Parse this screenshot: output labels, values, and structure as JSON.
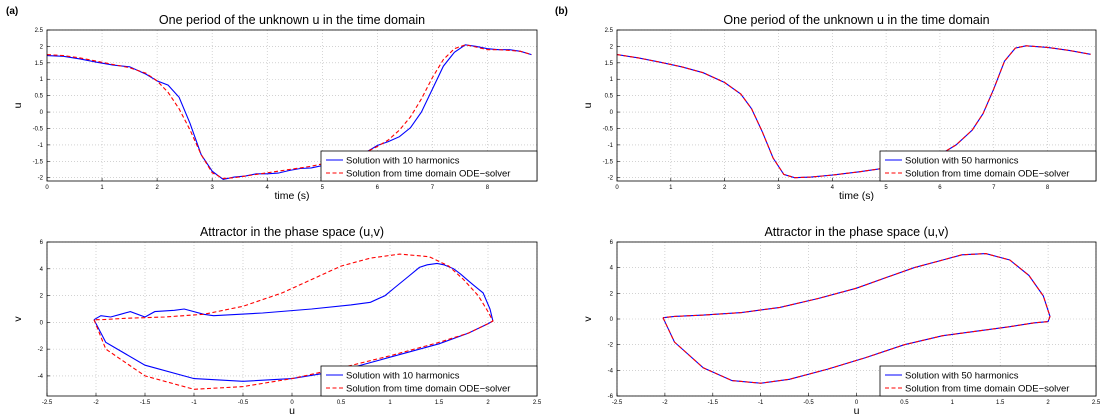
{
  "panels": {
    "a": "(a)",
    "b": "(b)"
  },
  "chart_data": [
    {
      "id": "a_top",
      "type": "line",
      "title": "One period of the unknown u in the time domain",
      "xlabel": "time (s)",
      "ylabel": "u",
      "xlim": [
        0,
        8.9
      ],
      "ylim": [
        -2.1,
        2.5
      ],
      "xticks": [
        0,
        1,
        2,
        3,
        4,
        5,
        6,
        7,
        8
      ],
      "yticks": [
        -2,
        -1.5,
        -1,
        -0.5,
        0,
        0.5,
        1,
        1.5,
        2,
        2.5
      ],
      "grid": true,
      "legend_position": "bottom-right",
      "series": [
        {
          "name": "Solution with 10 harmonics",
          "color": "#0000ff",
          "dash": "solid",
          "x": [
            0,
            0.3,
            0.6,
            0.9,
            1.2,
            1.5,
            1.8,
            2.0,
            2.2,
            2.4,
            2.6,
            2.8,
            3.0,
            3.2,
            3.4,
            3.6,
            3.8,
            4.0,
            4.2,
            4.4,
            4.6,
            4.8,
            5.0,
            5.2,
            5.4,
            5.6,
            5.8,
            6.0,
            6.2,
            6.4,
            6.6,
            6.8,
            7.0,
            7.2,
            7.4,
            7.6,
            7.8,
            8.0,
            8.2,
            8.4,
            8.6,
            8.8
          ],
          "y": [
            1.72,
            1.7,
            1.62,
            1.52,
            1.43,
            1.38,
            1.15,
            0.95,
            0.82,
            0.45,
            -0.35,
            -1.3,
            -1.8,
            -2.05,
            -1.98,
            -1.95,
            -1.88,
            -1.88,
            -1.86,
            -1.78,
            -1.72,
            -1.7,
            -1.63,
            -1.58,
            -1.5,
            -1.38,
            -1.22,
            -1.02,
            -0.9,
            -0.75,
            -0.48,
            0.0,
            0.7,
            1.4,
            1.82,
            2.05,
            2.0,
            1.93,
            1.9,
            1.9,
            1.85,
            1.75
          ]
        },
        {
          "name": "Solution from time domain ODE−solver",
          "color": "#ff0000",
          "dash": "dashed",
          "x": [
            0,
            0.3,
            0.6,
            0.9,
            1.2,
            1.5,
            1.8,
            2.0,
            2.2,
            2.4,
            2.6,
            2.8,
            3.0,
            3.2,
            3.4,
            3.6,
            3.8,
            4.0,
            4.2,
            4.4,
            4.6,
            4.8,
            5.0,
            5.2,
            5.4,
            5.6,
            5.8,
            6.0,
            6.2,
            6.4,
            6.6,
            6.8,
            7.0,
            7.2,
            7.4,
            7.6,
            7.8,
            8.0,
            8.2,
            8.4,
            8.6,
            8.8
          ],
          "y": [
            1.75,
            1.72,
            1.65,
            1.55,
            1.45,
            1.35,
            1.18,
            0.95,
            0.6,
            0.1,
            -0.55,
            -1.3,
            -1.85,
            -2.02,
            -2.0,
            -1.95,
            -1.9,
            -1.85,
            -1.8,
            -1.75,
            -1.7,
            -1.65,
            -1.58,
            -1.52,
            -1.45,
            -1.35,
            -1.22,
            -1.05,
            -0.85,
            -0.55,
            -0.15,
            0.4,
            1.05,
            1.6,
            1.93,
            2.05,
            1.98,
            1.9,
            1.9,
            1.88,
            1.85,
            1.75
          ]
        }
      ]
    },
    {
      "id": "a_bottom",
      "type": "line",
      "title": "Attractor in the phase space (u,v)",
      "xlabel": "u",
      "ylabel": "v",
      "xlim": [
        -2.5,
        2.5
      ],
      "ylim": [
        -5.5,
        6
      ],
      "xticks": [
        -2.5,
        -2,
        -1.5,
        -1,
        -0.5,
        0,
        0.5,
        1,
        1.5,
        2,
        2.5
      ],
      "yticks": [
        -4,
        -2,
        0,
        2,
        4,
        6
      ],
      "grid": true,
      "legend_position": "bottom-right",
      "series": [
        {
          "name": "Solution with 10 harmonics",
          "color": "#0000ff",
          "dash": "solid",
          "x": [
            -2.02,
            -1.9,
            -1.5,
            -1.0,
            -0.5,
            0.0,
            0.5,
            1.0,
            1.5,
            1.8,
            2.0,
            2.05,
            2.02,
            1.95,
            1.9,
            1.85,
            1.8,
            1.72,
            1.65,
            1.55,
            1.48,
            1.38,
            1.3,
            1.2,
            1.05,
            0.95,
            0.8,
            0.6,
            0.2,
            -0.3,
            -0.8,
            -0.9,
            -1.1,
            -1.2,
            -1.4,
            -1.5,
            -1.65,
            -1.75,
            -1.85,
            -1.95,
            -2.02
          ],
          "y": [
            0.2,
            -1.5,
            -3.2,
            -4.2,
            -4.4,
            -4.2,
            -3.6,
            -2.6,
            -1.6,
            -0.8,
            -0.1,
            0.1,
            1.0,
            2.2,
            2.5,
            2.8,
            3.1,
            3.6,
            4.0,
            4.3,
            4.4,
            4.3,
            4.1,
            3.5,
            2.6,
            2.0,
            1.5,
            1.3,
            1.0,
            0.7,
            0.5,
            0.6,
            1.0,
            0.9,
            0.8,
            0.4,
            0.8,
            0.6,
            0.4,
            0.5,
            0.2
          ]
        },
        {
          "name": "Solution from time domain ODE−solver",
          "color": "#ff0000",
          "dash": "dashed",
          "x": [
            -2.02,
            -1.9,
            -1.5,
            -1.0,
            -0.5,
            0.0,
            0.5,
            1.0,
            1.5,
            1.8,
            2.0,
            2.05,
            2.0,
            1.9,
            1.75,
            1.6,
            1.4,
            1.1,
            0.8,
            0.5,
            0.2,
            -0.1,
            -0.5,
            -0.9,
            -1.3,
            -1.7,
            -1.95,
            -2.02
          ],
          "y": [
            0.2,
            -2.0,
            -4.0,
            -5.0,
            -4.8,
            -4.2,
            -3.4,
            -2.5,
            -1.5,
            -0.8,
            -0.1,
            0.1,
            0.8,
            2.0,
            3.2,
            4.2,
            4.9,
            5.1,
            4.8,
            4.2,
            3.2,
            2.2,
            1.2,
            0.6,
            0.4,
            0.3,
            0.2,
            0.2
          ]
        }
      ]
    },
    {
      "id": "b_top",
      "type": "line",
      "title": "One period of the unknown u in the time domain",
      "xlabel": "time (s)",
      "ylabel": "u",
      "xlim": [
        0,
        8.9
      ],
      "ylim": [
        -2.1,
        2.5
      ],
      "xticks": [
        0,
        1,
        2,
        3,
        4,
        5,
        6,
        7,
        8
      ],
      "yticks": [
        -2.5,
        -2,
        -1.5,
        -1,
        -0.5,
        0,
        0.5,
        1,
        1.5,
        2,
        2.5
      ],
      "grid": true,
      "legend_position": "bottom-right",
      "series": [
        {
          "name": "Solution with 50 harmonics",
          "color": "#0000ff",
          "dash": "solid",
          "x": [
            0,
            0.4,
            0.8,
            1.2,
            1.6,
            2.0,
            2.3,
            2.5,
            2.7,
            2.9,
            3.1,
            3.3,
            3.6,
            4.0,
            4.5,
            5.0,
            5.5,
            6.0,
            6.3,
            6.6,
            6.8,
            7.0,
            7.2,
            7.4,
            7.6,
            8.0,
            8.4,
            8.8
          ],
          "y": [
            1.75,
            1.65,
            1.52,
            1.38,
            1.2,
            0.9,
            0.55,
            0.1,
            -0.6,
            -1.4,
            -1.9,
            -2.0,
            -1.98,
            -1.92,
            -1.82,
            -1.7,
            -1.55,
            -1.3,
            -1.0,
            -0.55,
            -0.05,
            0.7,
            1.55,
            1.95,
            2.02,
            1.97,
            1.88,
            1.76
          ]
        },
        {
          "name": "Solution from time domain ODE−solver",
          "color": "#ff0000",
          "dash": "dashed",
          "x": [
            0,
            0.4,
            0.8,
            1.2,
            1.6,
            2.0,
            2.3,
            2.5,
            2.7,
            2.9,
            3.1,
            3.3,
            3.6,
            4.0,
            4.5,
            5.0,
            5.5,
            6.0,
            6.3,
            6.6,
            6.8,
            7.0,
            7.2,
            7.4,
            7.6,
            8.0,
            8.4,
            8.8
          ],
          "y": [
            1.75,
            1.65,
            1.52,
            1.38,
            1.2,
            0.9,
            0.55,
            0.1,
            -0.6,
            -1.4,
            -1.9,
            -2.0,
            -1.98,
            -1.92,
            -1.82,
            -1.7,
            -1.55,
            -1.3,
            -1.0,
            -0.55,
            -0.05,
            0.7,
            1.55,
            1.95,
            2.02,
            1.97,
            1.88,
            1.76
          ]
        }
      ]
    },
    {
      "id": "b_bottom",
      "type": "line",
      "title": "Attractor in the phase space (u,v)",
      "xlabel": "u",
      "ylabel": "v",
      "xlim": [
        -2.5,
        2.5
      ],
      "ylim": [
        -6,
        6
      ],
      "xticks": [
        -2.5,
        -2,
        -1.5,
        -1,
        -0.5,
        0,
        0.5,
        1,
        1.5,
        2,
        2.5
      ],
      "yticks": [
        -6,
        -4,
        -2,
        0,
        2,
        4,
        6
      ],
      "grid": true,
      "legend_position": "bottom-right",
      "series": [
        {
          "name": "Solution with 50 harmonics",
          "color": "#0000ff",
          "dash": "solid",
          "x": [
            -2.02,
            -1.9,
            -1.6,
            -1.3,
            -1.0,
            -0.7,
            -0.3,
            0.1,
            0.5,
            0.9,
            1.3,
            1.6,
            1.85,
            2.0,
            2.02,
            1.95,
            1.8,
            1.6,
            1.35,
            1.1,
            0.9,
            0.6,
            0.3,
            0.0,
            -0.4,
            -0.8,
            -1.2,
            -1.6,
            -1.9,
            -2.02
          ],
          "y": [
            0.1,
            -1.8,
            -3.8,
            -4.8,
            -5.0,
            -4.7,
            -3.9,
            -3.0,
            -2.0,
            -1.3,
            -0.9,
            -0.6,
            -0.3,
            -0.2,
            0.2,
            1.8,
            3.4,
            4.6,
            5.1,
            5.0,
            4.6,
            4.0,
            3.2,
            2.4,
            1.6,
            0.9,
            0.5,
            0.3,
            0.2,
            0.1
          ]
        },
        {
          "name": "Solution from time domain ODE−solver",
          "color": "#ff0000",
          "dash": "dashed",
          "x": [
            -2.02,
            -1.9,
            -1.6,
            -1.3,
            -1.0,
            -0.7,
            -0.3,
            0.1,
            0.5,
            0.9,
            1.3,
            1.6,
            1.85,
            2.0,
            2.02,
            1.95,
            1.8,
            1.6,
            1.35,
            1.1,
            0.9,
            0.6,
            0.3,
            0.0,
            -0.4,
            -0.8,
            -1.2,
            -1.6,
            -1.9,
            -2.02
          ],
          "y": [
            0.1,
            -1.8,
            -3.8,
            -4.8,
            -5.0,
            -4.7,
            -3.9,
            -3.0,
            -2.0,
            -1.3,
            -0.9,
            -0.6,
            -0.3,
            -0.2,
            0.2,
            1.8,
            3.4,
            4.6,
            5.1,
            5.0,
            4.6,
            4.0,
            3.2,
            2.4,
            1.6,
            0.9,
            0.5,
            0.3,
            0.2,
            0.1
          ]
        }
      ]
    }
  ]
}
